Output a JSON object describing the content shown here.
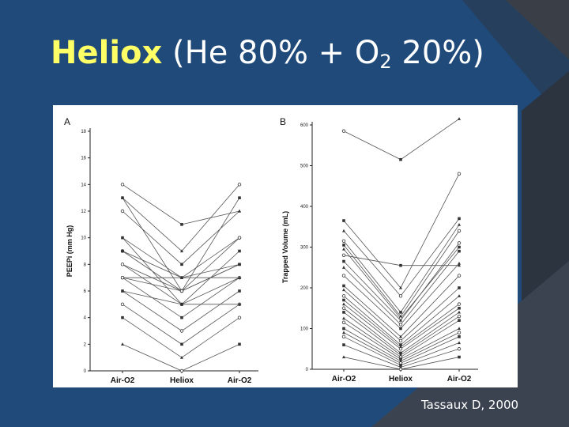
{
  "slide": {
    "title_main": "Heliox",
    "title_paren_open": "(He 80% + O",
    "title_sub_2": "2",
    "title_mid": " 20%)",
    "citation": "Tassaux D, 2000"
  },
  "colors": {
    "background": "#1f4a7a",
    "title": "#ffff66",
    "text": "#ffffff"
  },
  "chart_data": [
    {
      "type": "line",
      "panel_label": "A",
      "ylabel": "PEEPi (mm Hg)",
      "categories": [
        "Air-O2",
        "Heliox",
        "Air-O2"
      ],
      "ylim": [
        0,
        18
      ],
      "yticks": [
        0,
        2,
        4,
        6,
        8,
        10,
        12,
        14,
        16,
        18
      ],
      "series": [
        {
          "values": [
            14,
            11,
            12
          ]
        },
        {
          "values": [
            13,
            9,
            14
          ]
        },
        {
          "values": [
            13,
            6,
            13
          ]
        },
        {
          "values": [
            12,
            8,
            12
          ]
        },
        {
          "values": [
            10,
            7,
            10
          ]
        },
        {
          "values": [
            10,
            5,
            9
          ]
        },
        {
          "values": [
            9,
            7,
            8
          ]
        },
        {
          "values": [
            9,
            6,
            10
          ]
        },
        {
          "values": [
            8,
            6,
            8
          ]
        },
        {
          "values": [
            8,
            5,
            7
          ]
        },
        {
          "values": [
            7,
            7,
            7
          ]
        },
        {
          "values": [
            7,
            6,
            8
          ]
        },
        {
          "values": [
            7,
            4,
            7
          ]
        },
        {
          "values": [
            6,
            5,
            5
          ]
        },
        {
          "values": [
            6,
            3,
            6
          ]
        },
        {
          "values": [
            5,
            2,
            5
          ]
        },
        {
          "values": [
            4,
            1,
            4
          ]
        },
        {
          "values": [
            2,
            0,
            2
          ]
        }
      ]
    },
    {
      "type": "line",
      "panel_label": "B",
      "ylabel": "Trapped Volume (mL)",
      "categories": [
        "Air-O2",
        "Heliox",
        "Air-O2"
      ],
      "ylim": [
        0,
        600
      ],
      "yticks": [
        0,
        100,
        200,
        300,
        400,
        500,
        600
      ],
      "series": [
        {
          "values": [
            585,
            515,
            615
          ]
        },
        {
          "values": [
            365,
            200,
            480
          ]
        },
        {
          "values": [
            340,
            180,
            370
          ]
        },
        {
          "values": [
            315,
            140,
            355
          ]
        },
        {
          "values": [
            305,
            130,
            340
          ]
        },
        {
          "values": [
            295,
            125,
            300
          ]
        },
        {
          "values": [
            280,
            255,
            255
          ]
        },
        {
          "values": [
            265,
            120,
            310
          ]
        },
        {
          "values": [
            250,
            110,
            290
          ]
        },
        {
          "values": [
            230,
            100,
            260
          ]
        },
        {
          "values": [
            205,
            80,
            230
          ]
        },
        {
          "values": [
            195,
            70,
            200
          ]
        },
        {
          "values": [
            180,
            60,
            180
          ]
        },
        {
          "values": [
            170,
            55,
            160
          ]
        },
        {
          "values": [
            160,
            50,
            150
          ]
        },
        {
          "values": [
            150,
            40,
            140
          ]
        },
        {
          "values": [
            140,
            35,
            130
          ]
        },
        {
          "values": [
            125,
            30,
            120
          ]
        },
        {
          "values": [
            115,
            25,
            100
          ]
        },
        {
          "values": [
            100,
            20,
            90
          ]
        },
        {
          "values": [
            90,
            15,
            80
          ]
        },
        {
          "values": [
            80,
            10,
            65
          ]
        },
        {
          "values": [
            60,
            5,
            50
          ]
        },
        {
          "values": [
            30,
            0,
            30
          ]
        }
      ]
    }
  ]
}
